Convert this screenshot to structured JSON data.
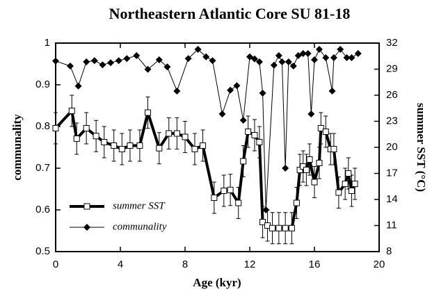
{
  "chart_data": {
    "type": "line",
    "title": "Northeastern Atlantic Core SU 81-18",
    "xlabel": "Age  (kyr)",
    "ylabel": "communality",
    "y2label": "summer SST  (°C)",
    "xlim": [
      0,
      20
    ],
    "xticks": [
      0,
      4,
      8,
      12,
      16,
      20
    ],
    "ylim": [
      0.5,
      1
    ],
    "yticks": [
      0.5,
      0.6,
      0.7,
      0.8,
      0.9,
      1
    ],
    "y2lim": [
      8,
      32
    ],
    "y2ticks": [
      8,
      11,
      14,
      17,
      20,
      23,
      26,
      29,
      32
    ],
    "legend": "lower left",
    "series": [
      {
        "name": "summer SST",
        "color": "#000000",
        "axis": "y2",
        "marker": "square",
        "x": [
          0,
          1.0,
          1.3,
          1.9,
          2.5,
          3.0,
          3.6,
          4.1,
          4.6,
          5.2,
          5.7,
          6.4,
          7.0,
          7.5,
          8.0,
          8.6,
          9.1,
          9.8,
          10.4,
          10.8,
          11.3,
          11.6,
          11.9,
          12.3,
          12.6,
          12.8,
          13.1,
          13.4,
          13.8,
          14.2,
          14.6,
          14.9,
          15.1,
          15.3,
          15.5,
          15.7,
          16.0,
          16.3,
          16.4,
          16.7,
          17.0,
          17.2,
          17.5,
          17.9,
          18.1,
          18.3,
          18.5
        ],
        "values": [
          22.2,
          24.2,
          21.0,
          22.2,
          21.3,
          20.6,
          20.2,
          19.8,
          20.2,
          20.2,
          24.0,
          19.9,
          21.6,
          21.6,
          21.2,
          19.8,
          20.2,
          14.2,
          15.0,
          15.1,
          13.6,
          18.4,
          21.8,
          21.4,
          20.6,
          11.4,
          11.0,
          10.7,
          10.7,
          10.7,
          10.7,
          13.6,
          17.4,
          17.8,
          17.4,
          18.6,
          16.0,
          18.2,
          22.2,
          21.8,
          19.8,
          19.8,
          14.8,
          15.8,
          17.0,
          15.0,
          15.8
        ],
        "errors": [
          1.8,
          1.8,
          1.8,
          1.8,
          1.8,
          1.8,
          1.8,
          1.8,
          1.8,
          1.8,
          1.8,
          1.8,
          1.8,
          1.8,
          1.8,
          1.8,
          1.8,
          1.8,
          1.8,
          1.8,
          1.8,
          1.8,
          1.8,
          1.8,
          1.8,
          1.8,
          1.8,
          1.8,
          1.8,
          1.8,
          1.8,
          1.8,
          1.8,
          1.8,
          1.8,
          1.8,
          1.8,
          1.8,
          1.8,
          1.8,
          1.8,
          1.8,
          1.8,
          1.8,
          1.8,
          1.8,
          1.8
        ]
      },
      {
        "name": "communality",
        "color": "#000000",
        "marker": "diamond",
        "x": [
          0.0,
          0.9,
          1.4,
          1.9,
          2.4,
          2.9,
          3.4,
          3.9,
          4.4,
          5.0,
          5.7,
          6.4,
          6.9,
          7.5,
          8.2,
          8.8,
          9.3,
          9.7,
          10.3,
          10.8,
          11.2,
          11.6,
          12.0,
          12.3,
          12.6,
          12.8,
          13.0,
          13.5,
          13.8,
          14.0,
          14.2,
          14.4,
          14.7,
          15.0,
          15.3,
          15.6,
          15.8,
          16.0,
          16.3,
          16.7,
          17.1,
          17.2,
          17.6,
          18.0,
          18.3,
          18.7
        ],
        "values": [
          0.957,
          0.945,
          0.897,
          0.955,
          0.958,
          0.948,
          0.953,
          0.958,
          0.963,
          0.97,
          0.937,
          0.96,
          0.943,
          0.885,
          0.963,
          0.985,
          0.967,
          0.958,
          0.83,
          0.887,
          0.898,
          0.815,
          0.967,
          0.962,
          0.955,
          0.88,
          0.6,
          0.947,
          0.97,
          0.955,
          0.7,
          0.955,
          0.945,
          0.97,
          0.975,
          0.975,
          0.83,
          0.96,
          0.985,
          0.965,
          0.885,
          0.965,
          0.985,
          0.965,
          0.965,
          0.975
        ]
      }
    ]
  }
}
